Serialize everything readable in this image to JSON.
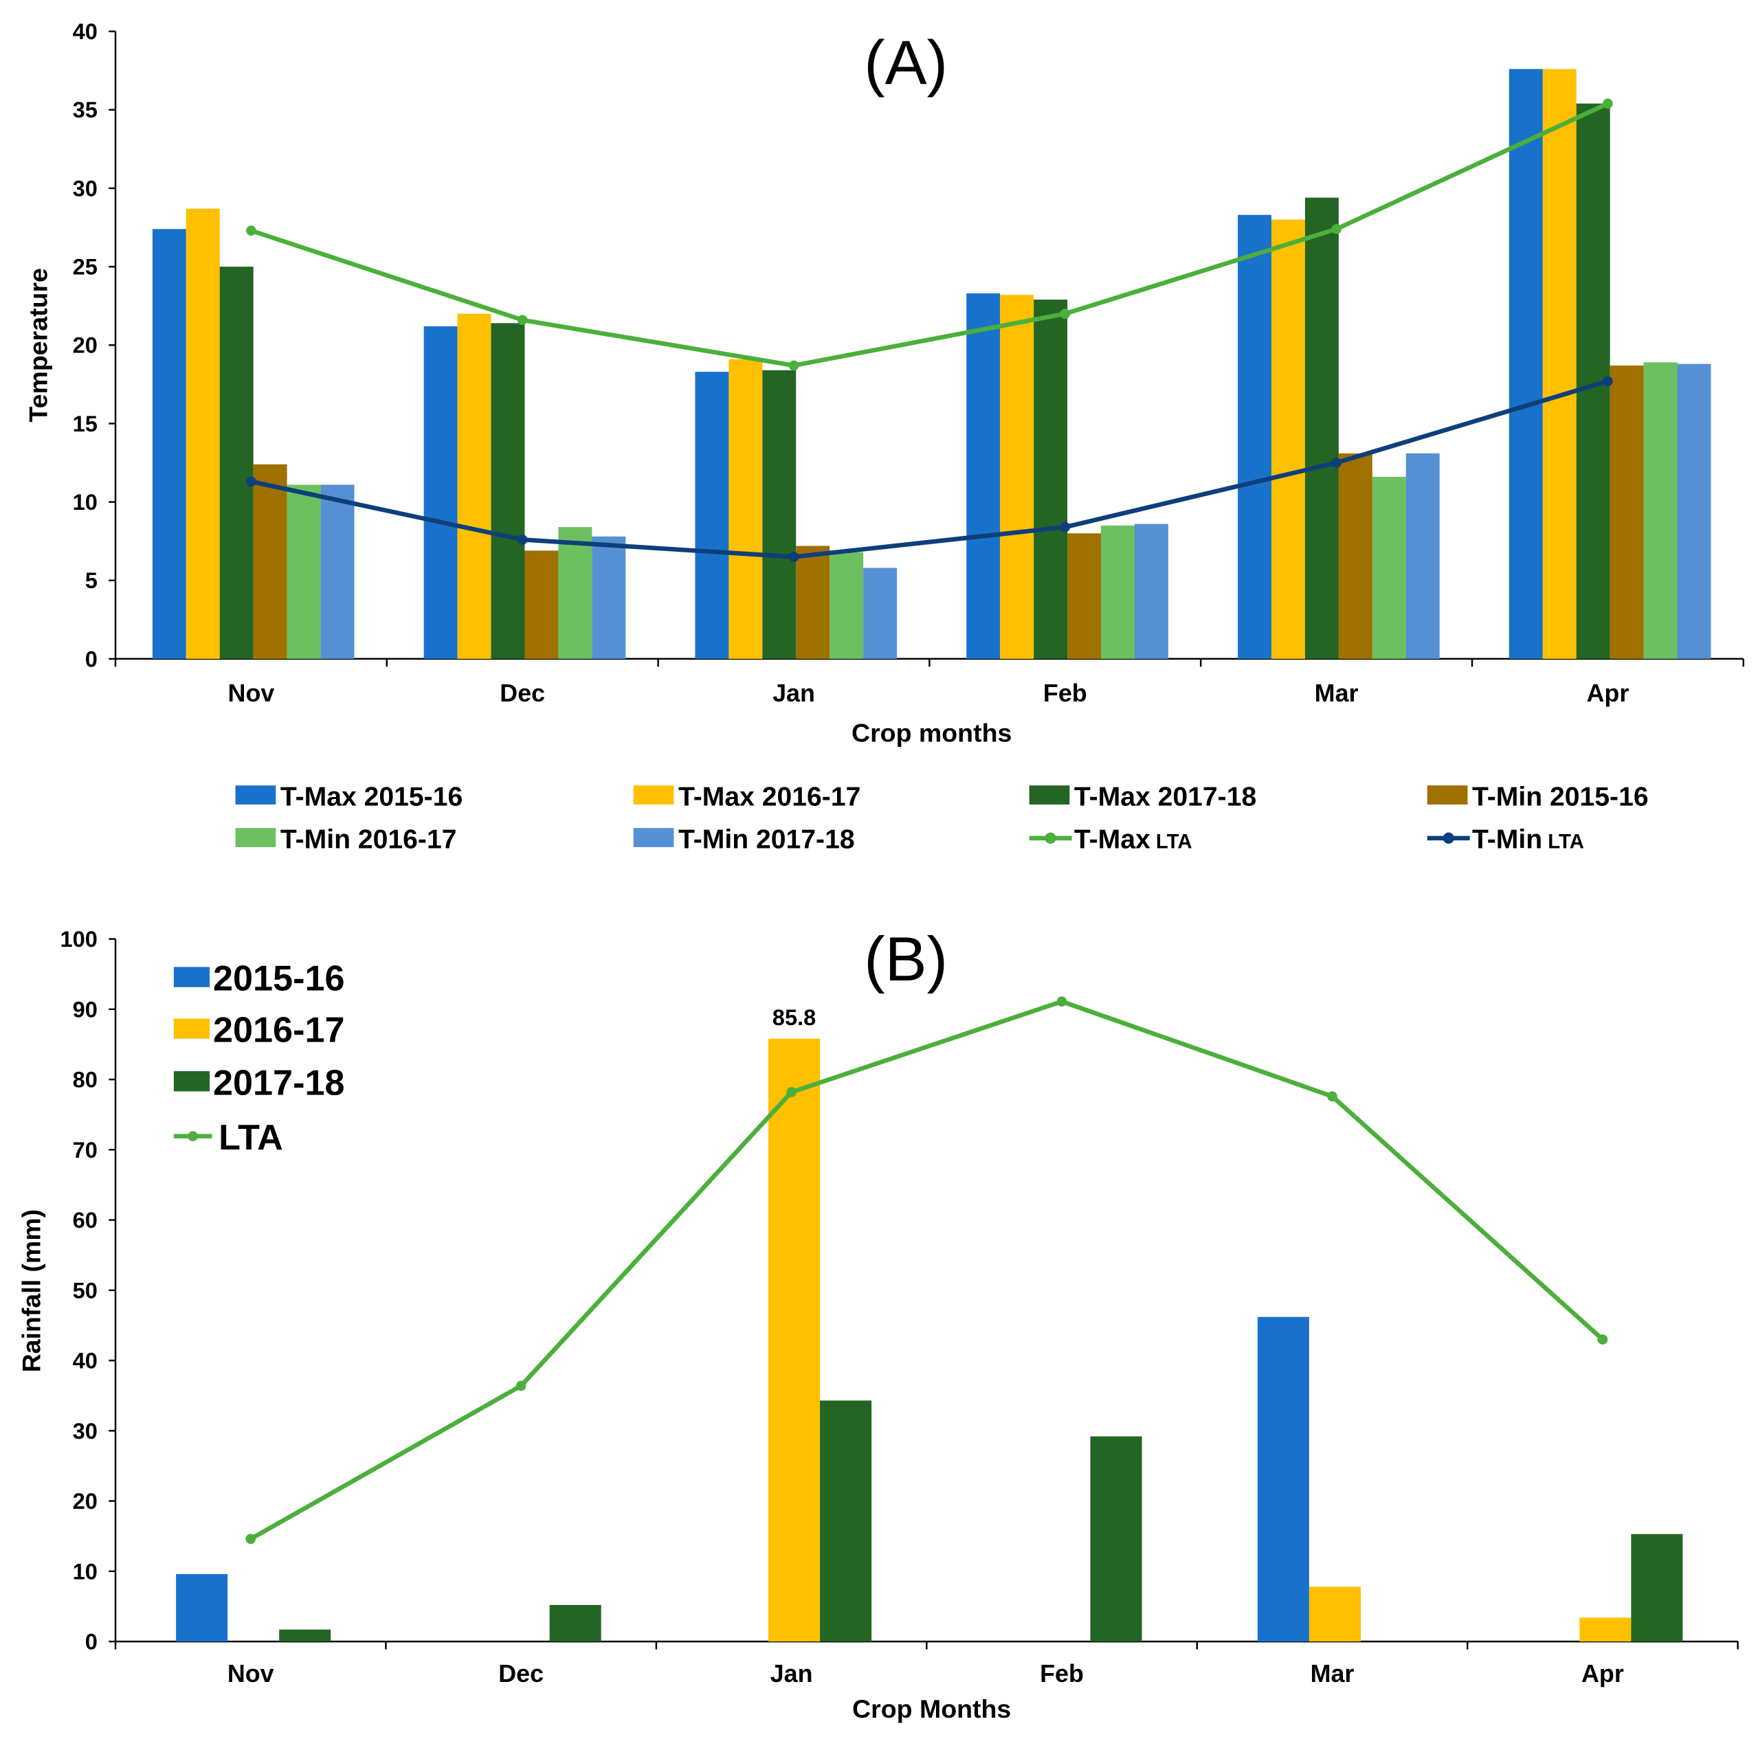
{
  "chart_data": [
    {
      "type": "bar",
      "title": "(A)",
      "xlabel": "Crop months",
      "ylabel": "Temperature",
      "ylim": [
        0,
        40
      ],
      "yticks": [
        0,
        5,
        10,
        15,
        20,
        25,
        30,
        35,
        40
      ],
      "categories": [
        "Nov",
        "Dec",
        "Jan",
        "Feb",
        "Mar",
        "Apr"
      ],
      "legend_placement": "bottom",
      "series": [
        {
          "name": "T-Max 2015-16",
          "kind": "bar",
          "color": "#1872CC",
          "values": [
            27.4,
            21.2,
            18.3,
            23.3,
            28.3,
            37.6
          ]
        },
        {
          "name": "T-Max 2016-17",
          "kind": "bar",
          "color": "#FFC000",
          "values": [
            28.7,
            22.0,
            19.1,
            23.2,
            28.0,
            37.6
          ]
        },
        {
          "name": "T-Max 2017-18",
          "kind": "bar",
          "color": "#246524",
          "values": [
            25.0,
            21.4,
            18.4,
            22.9,
            29.4,
            35.4
          ]
        },
        {
          "name": "T-Min 2015-16",
          "kind": "bar",
          "color": "#A07000",
          "values": [
            12.4,
            6.9,
            7.2,
            8.0,
            13.1,
            18.7
          ]
        },
        {
          "name": "T-Min 2016-17",
          "kind": "bar",
          "color": "#6CC060",
          "values": [
            11.1,
            8.4,
            6.8,
            8.5,
            11.6,
            18.9
          ]
        },
        {
          "name": "T-Min 2017-18",
          "kind": "bar",
          "color": "#5590D4",
          "values": [
            11.1,
            7.8,
            5.8,
            8.6,
            13.1,
            18.8
          ]
        },
        {
          "name": "T-Max",
          "name_suffix": "LTA",
          "kind": "line",
          "color": "#4CAF3C",
          "values": [
            27.3,
            21.6,
            18.7,
            22.0,
            27.4,
            35.4
          ]
        },
        {
          "name": "T-Min",
          "name_suffix": "LTA",
          "kind": "line",
          "color": "#0E3F7A",
          "values": [
            11.3,
            7.6,
            6.5,
            8.4,
            12.5,
            17.7
          ]
        }
      ]
    },
    {
      "type": "bar",
      "title": "(B)",
      "xlabel": "Crop Months",
      "ylabel": "Rainfall (mm)",
      "ylim": [
        0,
        100
      ],
      "yticks": [
        0,
        10,
        20,
        30,
        40,
        50,
        60,
        70,
        80,
        90,
        100
      ],
      "categories": [
        "Nov",
        "Dec",
        "Jan",
        "Feb",
        "Mar",
        "Apr"
      ],
      "legend_placement": "top-left",
      "annotations": [
        {
          "category": "Jan",
          "series": "2016-17",
          "text": "85.8"
        }
      ],
      "series": [
        {
          "name": "2015-16",
          "kind": "bar",
          "color": "#1872CC",
          "values": [
            9.6,
            0,
            0,
            0,
            46.2,
            0
          ]
        },
        {
          "name": "2016-17",
          "kind": "bar",
          "color": "#FFC000",
          "values": [
            0,
            0,
            85.8,
            0,
            7.8,
            3.4
          ]
        },
        {
          "name": "2017-18",
          "kind": "bar",
          "color": "#246524",
          "values": [
            1.7,
            5.2,
            34.3,
            29.2,
            0,
            15.3
          ]
        },
        {
          "name": "LTA",
          "kind": "line",
          "color": "#4CAF3C",
          "values": [
            14.6,
            36.4,
            78.2,
            91.1,
            77.6,
            43.0
          ]
        }
      ]
    }
  ]
}
